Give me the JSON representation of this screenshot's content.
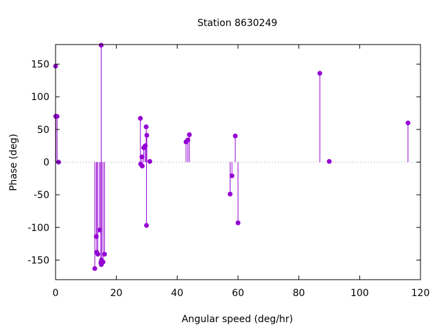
{
  "chart_data": {
    "type": "scatter",
    "style": "stem",
    "title": "Station 8630249",
    "xlabel": "Angular speed (deg/hr)",
    "ylabel": "Phase (deg)",
    "xlim": [
      0,
      120
    ],
    "ylim": [
      -180,
      180
    ],
    "xticks": [
      0,
      20,
      40,
      60,
      80,
      100,
      120
    ],
    "yticks": [
      -150,
      -100,
      -50,
      0,
      50,
      100,
      150
    ],
    "grid": false,
    "zero_line": "dotted",
    "color": "#9400d3",
    "points": [
      {
        "x": 0.0,
        "y": 147
      },
      {
        "x": 0.04,
        "y": 70
      },
      {
        "x": 0.08,
        "y": 70
      },
      {
        "x": 0.5,
        "y": 70
      },
      {
        "x": 1.0,
        "y": 0
      },
      {
        "x": 12.9,
        "y": -163
      },
      {
        "x": 13.4,
        "y": -114
      },
      {
        "x": 13.5,
        "y": -138
      },
      {
        "x": 13.9,
        "y": -141
      },
      {
        "x": 14.5,
        "y": -104
      },
      {
        "x": 14.9,
        "y": -154
      },
      {
        "x": 15.0,
        "y": 179
      },
      {
        "x": 15.05,
        "y": -157
      },
      {
        "x": 15.1,
        "y": -150
      },
      {
        "x": 15.6,
        "y": -153
      },
      {
        "x": 16.1,
        "y": -141
      },
      {
        "x": 27.9,
        "y": 67
      },
      {
        "x": 28.0,
        "y": -3
      },
      {
        "x": 28.4,
        "y": 8
      },
      {
        "x": 28.5,
        "y": -6
      },
      {
        "x": 29.0,
        "y": 22
      },
      {
        "x": 29.5,
        "y": 25
      },
      {
        "x": 29.8,
        "y": 54
      },
      {
        "x": 29.9,
        "y": -97
      },
      {
        "x": 30.0,
        "y": 41
      },
      {
        "x": 31.0,
        "y": 1
      },
      {
        "x": 42.9,
        "y": 31
      },
      {
        "x": 43.5,
        "y": 34
      },
      {
        "x": 44.0,
        "y": 42
      },
      {
        "x": 57.4,
        "y": -49
      },
      {
        "x": 58.0,
        "y": -21
      },
      {
        "x": 59.1,
        "y": 40
      },
      {
        "x": 60.0,
        "y": -93
      },
      {
        "x": 86.9,
        "y": 136
      },
      {
        "x": 90.0,
        "y": 1
      },
      {
        "x": 115.9,
        "y": 60
      }
    ]
  }
}
